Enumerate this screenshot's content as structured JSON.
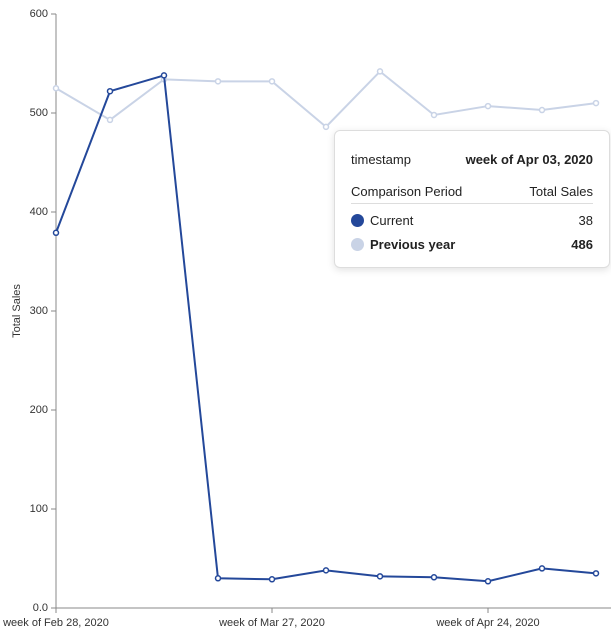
{
  "chart_data": {
    "type": "line",
    "y_label": "Total Sales",
    "categories": [
      "week of Feb 28, 2020",
      null,
      null,
      null,
      "week of Mar 27, 2020",
      null,
      null,
      null,
      "week of Apr 24, 2020",
      null,
      null
    ],
    "series": [
      {
        "name": "Previous year",
        "color": "#c9d3e6",
        "values": [
          525,
          493,
          534,
          532,
          532,
          486,
          542,
          498,
          507,
          503,
          510
        ]
      },
      {
        "name": "Current",
        "color": "#24489a",
        "values": [
          379,
          522,
          538,
          30,
          29,
          38,
          32,
          31,
          27,
          40,
          35
        ]
      }
    ],
    "ylim": [
      0,
      600
    ],
    "yticks": [
      {
        "value": 0,
        "label": "0.0"
      },
      100,
      200,
      300,
      400,
      500,
      600
    ],
    "tooltip": {
      "key": "timestamp",
      "key_value": "week of Apr 03, 2020",
      "columns": [
        "Comparison Period",
        "Total Sales"
      ],
      "rows": [
        {
          "name": "Current",
          "color": "#24489a",
          "value": 38
        },
        {
          "name": "Previous year",
          "color": "#c9d3e6",
          "value": 486
        }
      ]
    }
  }
}
